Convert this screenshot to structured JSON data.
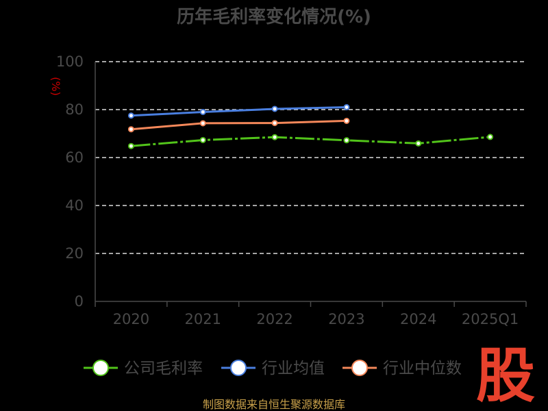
{
  "chart_data": {
    "type": "line",
    "title": "历年毛利率变化情况(%)",
    "ylabel": "(%)",
    "ylim": [
      0,
      100
    ],
    "yticks": [
      0,
      20,
      40,
      60,
      80,
      100
    ],
    "categories": [
      "2020",
      "2021",
      "2022",
      "2023",
      "2024",
      "2025Q1"
    ],
    "grid": true,
    "legend_position": "bottom",
    "series": [
      {
        "name": "公司毛利率",
        "color": "#52c41a",
        "values": [
          64.8,
          67.3,
          68.5,
          67.2,
          65.9,
          68.6
        ]
      },
      {
        "name": "行业均值",
        "color": "#4a7fe0",
        "values": [
          77.5,
          79.0,
          80.3,
          81.0,
          null,
          null
        ]
      },
      {
        "name": "行业中位数",
        "color": "#f5885a",
        "values": [
          71.8,
          74.3,
          74.4,
          75.3,
          null,
          null
        ]
      }
    ]
  },
  "source": "制图数据来自恒生聚源数据库",
  "logo_text": "股"
}
